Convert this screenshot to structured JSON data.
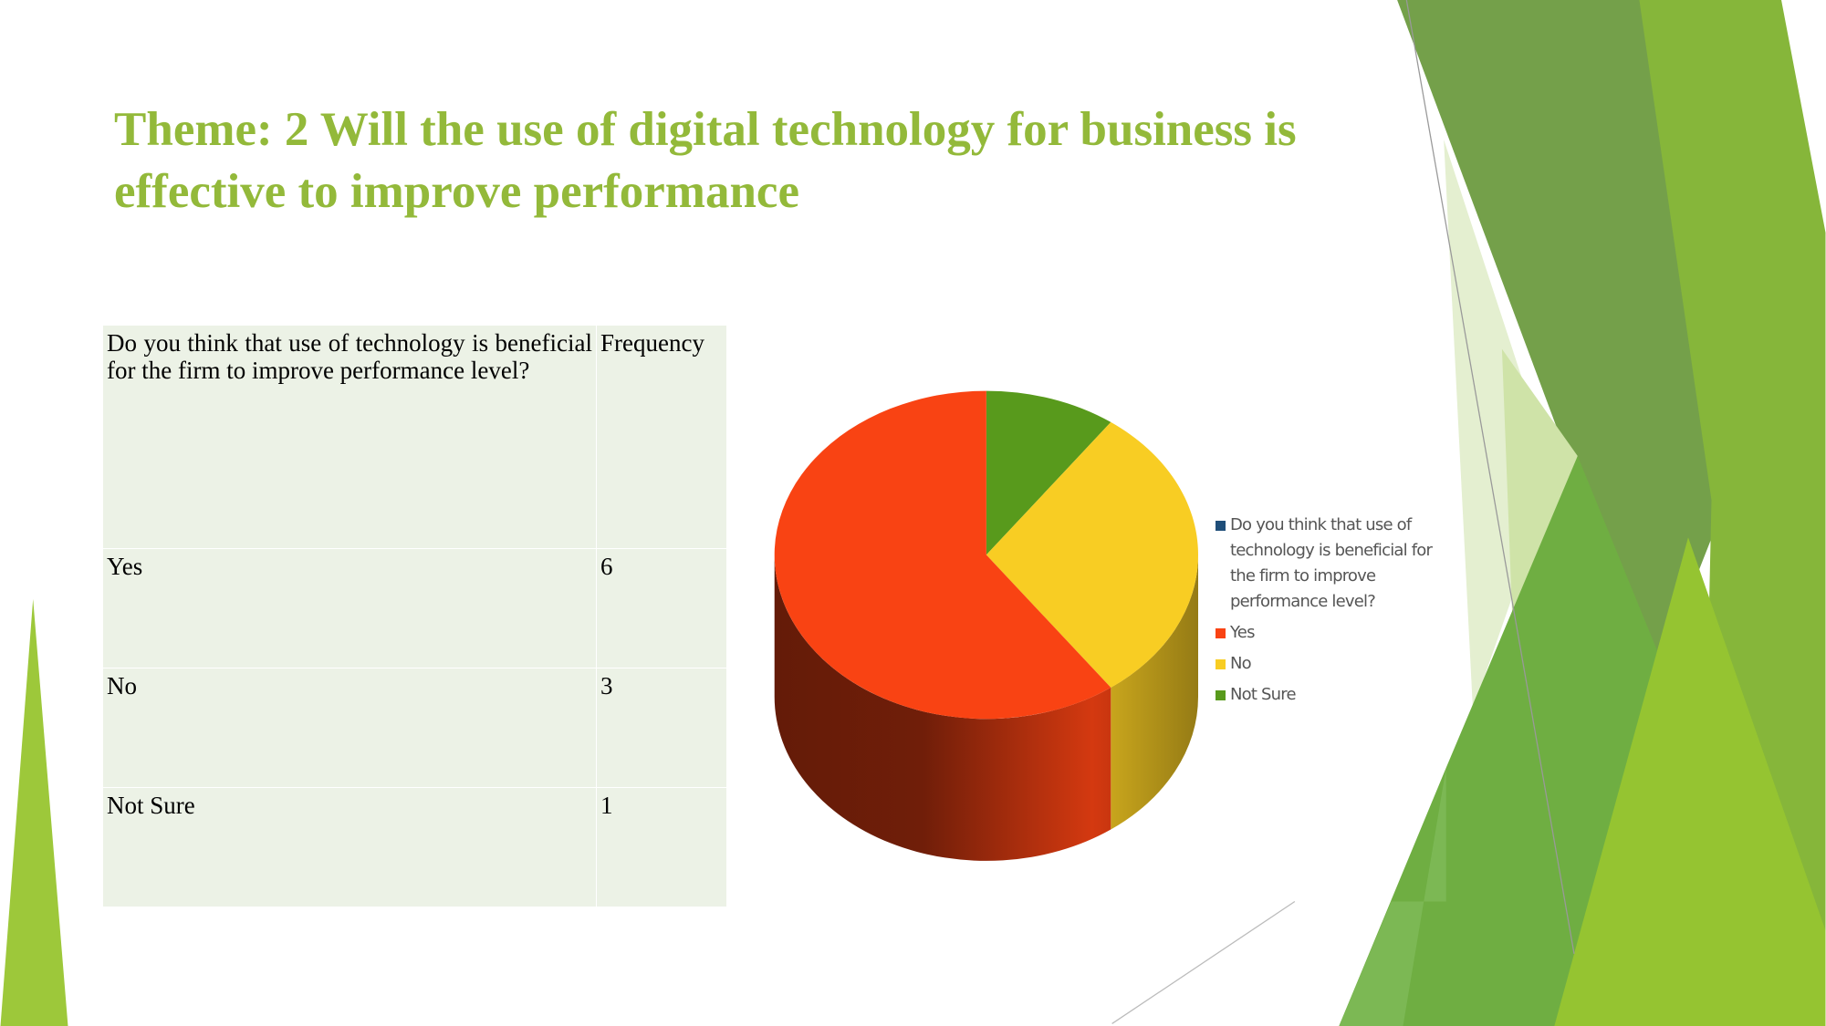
{
  "slide": {
    "title": "Theme: 2 Will the use of digital technology for business is effective to improve performance",
    "table": {
      "header": [
        "Do you think that use of technology is beneficial for the firm to improve performance level?",
        "Frequency"
      ],
      "rows": [
        [
          "Yes",
          6
        ],
        [
          "No",
          3
        ],
        [
          "Not Sure",
          1
        ]
      ]
    }
  },
  "chart_data": {
    "type": "pie",
    "three_d": true,
    "legend": "right",
    "categories": [
      "Do you think that use of technology is beneficial for the firm to improve performance level?",
      "Yes",
      "No",
      "Not Sure"
    ],
    "values": [
      null,
      6,
      3,
      1
    ],
    "colors": [
      "#1f4e79",
      "#f94313",
      "#f8cd23",
      "#589a1c"
    ]
  }
}
